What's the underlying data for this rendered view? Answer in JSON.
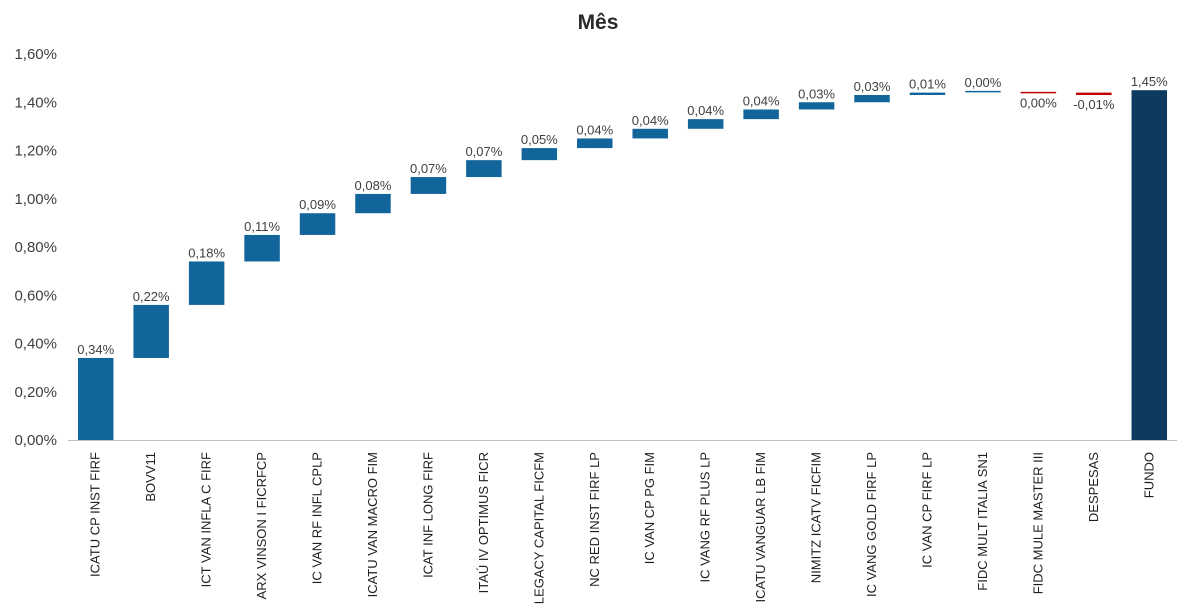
{
  "chart_data": {
    "type": "bar",
    "subtype": "waterfall",
    "title": "Mês",
    "xlabel": "",
    "ylabel": "",
    "ylim": [
      0,
      1.6
    ],
    "yticks": [
      "0,00%",
      "0,20%",
      "0,40%",
      "0,60%",
      "0,80%",
      "1,00%",
      "1,20%",
      "1,40%",
      "1,60%"
    ],
    "grid": false,
    "legend": "none",
    "colors": {
      "increase": "#12659A",
      "decrease": "#C00000",
      "total": "#0D3A5E",
      "axis": "#BFBFBF"
    },
    "categories": [
      "ICATU CP INST FIRF",
      "BOVV11",
      "ICT VAN INFLA C FIRF",
      "ARX VINSON I FICRFCP",
      "IC VAN RF INFL CPLP",
      "ICATU VAN MACRO FIM",
      "ICAT INF LONG FIRF",
      "ITAÚ IV OPTIMUS FICR",
      "LEGACY CAPITAL FICFM",
      "NC RED INST FIRF LP",
      "IC VAN CP PG FIM",
      "IC VANG RF PLUS LP",
      "ICATU VANGUAR LB FIM",
      "NIMITZ ICATV FICFIM",
      "IC VANG GOLD FIRF LP",
      "IC VAN CP FIRF LP",
      "FIDC MULT ITALIA SN1",
      "FIDC MULE MASTER III",
      "DESPESAS",
      "FUNDO"
    ],
    "values": [
      0.34,
      0.22,
      0.18,
      0.11,
      0.09,
      0.08,
      0.07,
      0.07,
      0.05,
      0.04,
      0.04,
      0.04,
      0.04,
      0.03,
      0.03,
      0.01,
      0.004,
      -0.004,
      -0.01,
      1.45
    ],
    "data_labels": [
      "0,34%",
      "0,22%",
      "0,18%",
      "0,11%",
      "0,09%",
      "0,08%",
      "0,07%",
      "0,07%",
      "0,05%",
      "0,04%",
      "0,04%",
      "0,04%",
      "0,04%",
      "0,03%",
      "0,03%",
      "0,01%",
      "0,00%",
      "0,00%",
      "-0,01%",
      "1,45%"
    ],
    "bar_kind": [
      "delta",
      "delta",
      "delta",
      "delta",
      "delta",
      "delta",
      "delta",
      "delta",
      "delta",
      "delta",
      "delta",
      "delta",
      "delta",
      "delta",
      "delta",
      "delta",
      "delta",
      "delta",
      "delta",
      "total"
    ]
  }
}
